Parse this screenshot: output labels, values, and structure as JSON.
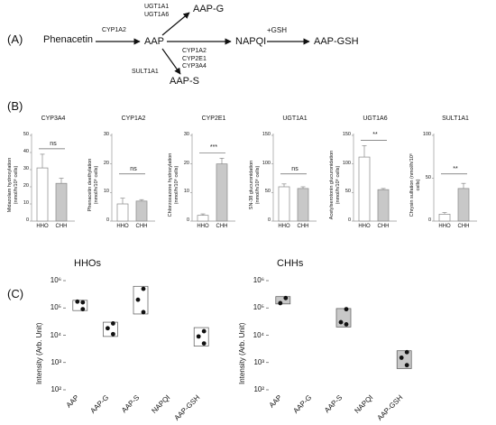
{
  "panel_a": {
    "label": "(A)",
    "nodes": {
      "phenacetin": "Phenacetin",
      "aap": "AAP",
      "aap_g": "AAP-G",
      "aap_s": "AAP-S",
      "napqi": "NAPQI",
      "aap_gsh": "AAP-GSH"
    },
    "enzymes": {
      "to_aap": "CYP1A2",
      "to_g": [
        "UGT1A1",
        "UGT1A6"
      ],
      "to_s": "SULT1A1",
      "to_napqi": [
        "CYP1A2",
        "CYP2E1",
        "CYP3A4"
      ],
      "to_gsh": "+GSH"
    }
  },
  "panel_b": {
    "label": "(B)"
  },
  "panel_c": {
    "label": "(C)"
  },
  "chart_data": [
    {
      "type": "bar",
      "title": "CYP3A4",
      "ylabel": "Midazolam hydroxylation (nmol/h/10⁶ cells)",
      "categories": [
        "HHO",
        "CHH"
      ],
      "values": [
        31,
        22
      ],
      "errors": [
        8,
        3
      ],
      "ylim": [
        0,
        50
      ],
      "yticks": [
        "0",
        "10",
        "20",
        "30",
        "40",
        "50"
      ],
      "significance": "ns"
    },
    {
      "type": "bar",
      "title": "CYP1A2",
      "ylabel": "Phenacetin deethylation (nmol/h/10⁶ cells)",
      "categories": [
        "HHO",
        "CHH"
      ],
      "values": [
        6,
        7
      ],
      "errors": [
        2,
        0.5
      ],
      "ylim": [
        0,
        30
      ],
      "yticks": [
        "0",
        "10",
        "20",
        "30"
      ],
      "significance": "ns"
    },
    {
      "type": "bar",
      "title": "CYP2E1",
      "ylabel": "Chlorzoxazone hydroxylation (nmol/h/10⁶ cells)",
      "categories": [
        "HHO",
        "CHH"
      ],
      "values": [
        2,
        20
      ],
      "errors": [
        0.5,
        2
      ],
      "ylim": [
        0,
        30
      ],
      "yticks": [
        "0",
        "10",
        "20",
        "30"
      ],
      "significance": "***"
    },
    {
      "type": "bar",
      "title": "UGT1A1",
      "ylabel": "SN-38 glucuronidation (nmol/h/10⁶ cells)",
      "categories": [
        "HHO",
        "CHH"
      ],
      "values": [
        60,
        57
      ],
      "errors": [
        5,
        3
      ],
      "ylim": [
        0,
        150
      ],
      "yticks": [
        "0",
        "50",
        "100",
        "150"
      ],
      "significance": "ns"
    },
    {
      "type": "bar",
      "title": "UGT1A6",
      "ylabel": "Acetylserotonin glucuronidation (nmol/h/10⁶ cells)",
      "categories": [
        "HHO",
        "CHH"
      ],
      "values": [
        112,
        55
      ],
      "errors": [
        20,
        2
      ],
      "ylim": [
        0,
        150
      ],
      "yticks": [
        "0",
        "50",
        "100",
        "150"
      ],
      "significance": "**"
    },
    {
      "type": "bar",
      "title": "SULT1A1",
      "ylabel": "Chrysin sulfation (nmol/h/10⁶ cells)",
      "categories": [
        "HHO",
        "CHH"
      ],
      "values": [
        8,
        38
      ],
      "errors": [
        2,
        6
      ],
      "ylim": [
        0,
        100
      ],
      "yticks": [
        "0",
        "50",
        "100"
      ],
      "significance": "**"
    },
    {
      "type": "box",
      "title": "HHOs",
      "ylabel": "Intensity (Arb. Unit)",
      "yscale": "log",
      "ylim": [
        100,
        1000000
      ],
      "yticks": [
        "10²",
        "10³",
        "10⁴",
        "10⁵",
        "10⁶"
      ],
      "categories": [
        "AAP",
        "AAP-G",
        "AAP-S",
        "NAPQI",
        "AAP-GSH"
      ],
      "boxes": [
        {
          "category": "AAP",
          "low": 80000,
          "high": 190000,
          "points": [
            160000,
            170000,
            90000
          ]
        },
        {
          "category": "AAP-G",
          "low": 9000,
          "high": 30000,
          "points": [
            27000,
            18000,
            11000
          ]
        },
        {
          "category": "AAP-S",
          "low": 60000,
          "high": 620000,
          "points": [
            500000,
            200000,
            70000
          ]
        },
        {
          "category": "NAPQI",
          "low": null,
          "high": null,
          "points": []
        },
        {
          "category": "AAP-GSH",
          "low": 4000,
          "high": 19000,
          "points": [
            14000,
            9000,
            5000
          ]
        }
      ]
    },
    {
      "type": "box",
      "title": "CHHs",
      "ylabel": "Intensity (Arb. Unit)",
      "yscale": "log",
      "ylim": [
        100,
        1000000
      ],
      "yticks": [
        "10²",
        "10³",
        "10⁴",
        "10⁵",
        "10⁶"
      ],
      "categories": [
        "AAP",
        "AAP-G",
        "AAP-S",
        "NAPQI",
        "AAP-GSH"
      ],
      "boxes": [
        {
          "category": "AAP",
          "low": 140000,
          "high": 260000,
          "points": [
            230000,
            150000
          ]
        },
        {
          "category": "AAP-G",
          "low": null,
          "high": null,
          "points": []
        },
        {
          "category": "AAP-S",
          "low": 20000,
          "high": 95000,
          "points": [
            90000,
            30000,
            25000
          ]
        },
        {
          "category": "NAPQI",
          "low": null,
          "high": null,
          "points": []
        },
        {
          "category": "AAP-GSH",
          "low": 600,
          "high": 2700,
          "points": [
            2400,
            1500,
            800
          ]
        }
      ]
    }
  ]
}
